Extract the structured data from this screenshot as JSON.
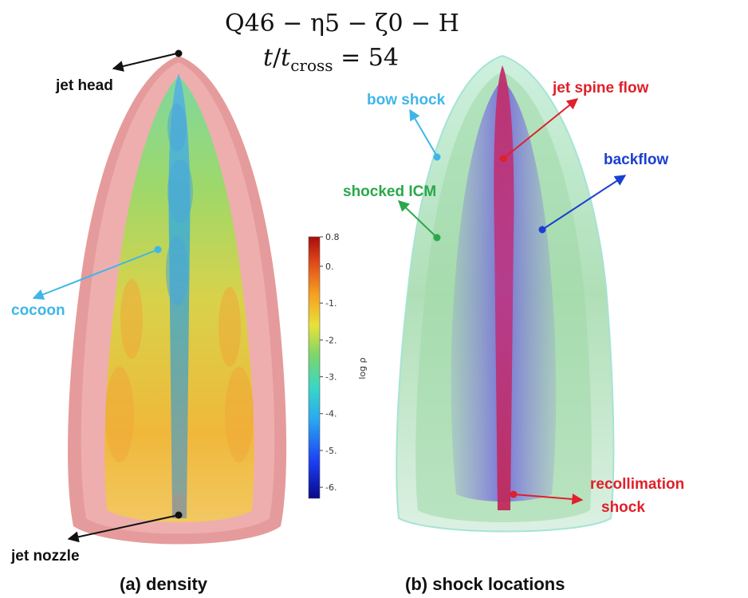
{
  "title": {
    "line1": "Q46 − η5 − ζ0 − H",
    "line2_t": "t",
    "line2_slash": "/",
    "line2_tsub": "t",
    "line2_sub": "cross",
    "line2_rest": " = 54"
  },
  "panel_a": {
    "caption": "(a) density",
    "labels": {
      "jet_head": "jet head",
      "cocoon": "cocoon",
      "jet_nozzle": "jet nozzle"
    },
    "label_colors": {
      "jet_head": "#111111",
      "cocoon": "#3fb6e8",
      "jet_nozzle": "#111111"
    }
  },
  "panel_b": {
    "caption": "(b) shock locations",
    "labels": {
      "bow_shock": "bow shock",
      "jet_spine_flow": "jet spine flow",
      "backflow": "backflow",
      "shocked_icm": "shocked ICM",
      "recollimation_1": "recollimation",
      "recollimation_2": "shock"
    },
    "label_colors": {
      "bow_shock": "#3fb6e8",
      "jet_spine_flow": "#e0202a",
      "backflow": "#1a3fd0",
      "shocked_icm": "#2aa84a",
      "recollimation": "#e0202a"
    }
  },
  "colorbar": {
    "label": "log ρ",
    "ticks": [
      "0.8",
      "0.",
      "-1.",
      "-2.",
      "-3.",
      "-4.",
      "-5.",
      "-6."
    ],
    "tick_values": [
      0.8,
      0,
      -1,
      -2,
      -3,
      -4,
      -5,
      -6
    ],
    "range": [
      -6.3,
      0.8
    ],
    "colormap": [
      "#08088a",
      "#1c3ff2",
      "#2aa8f0",
      "#38d6c8",
      "#7ed66a",
      "#e8e23a",
      "#f5a020",
      "#e24a1a",
      "#a80c0c"
    ]
  }
}
